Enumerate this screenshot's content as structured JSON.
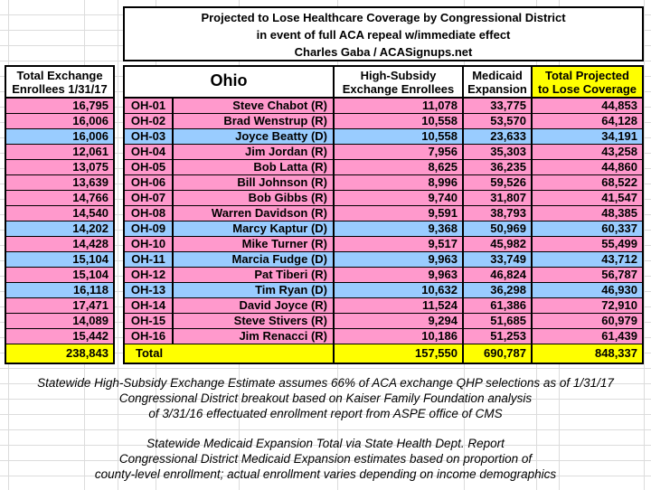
{
  "title": {
    "line1": "Projected to Lose Healthcare Coverage by Congressional District",
    "line2": "in event of full ACA repeal w/immediate effect",
    "line3": "Charles Gaba / ACASignups.net"
  },
  "left_column": {
    "header_line1": "Total Exchange",
    "header_line2": "Enrollees 1/31/17"
  },
  "table": {
    "state": "Ohio",
    "headers": {
      "high_subsidy_line1": "High-Subsidy",
      "high_subsidy_line2": "Exchange Enrollees",
      "medicaid_line1": "Medicaid",
      "medicaid_line2": "Expansion",
      "total_line1": "Total Projected",
      "total_line2": "to Lose Coverage"
    },
    "rows": [
      {
        "exchange_total": "16,795",
        "district": "OH-01",
        "representative": "Steve Chabot (R)",
        "party": "R",
        "high_subsidy": "11,078",
        "medicaid": "33,775",
        "total": "44,853"
      },
      {
        "exchange_total": "16,006",
        "district": "OH-02",
        "representative": "Brad Wenstrup (R)",
        "party": "R",
        "high_subsidy": "10,558",
        "medicaid": "53,570",
        "total": "64,128"
      },
      {
        "exchange_total": "16,006",
        "district": "OH-03",
        "representative": "Joyce Beatty (D)",
        "party": "D",
        "high_subsidy": "10,558",
        "medicaid": "23,633",
        "total": "34,191"
      },
      {
        "exchange_total": "12,061",
        "district": "OH-04",
        "representative": "Jim Jordan (R)",
        "party": "R",
        "high_subsidy": "7,956",
        "medicaid": "35,303",
        "total": "43,258"
      },
      {
        "exchange_total": "13,075",
        "district": "OH-05",
        "representative": "Bob Latta (R)",
        "party": "R",
        "high_subsidy": "8,625",
        "medicaid": "36,235",
        "total": "44,860"
      },
      {
        "exchange_total": "13,639",
        "district": "OH-06",
        "representative": "Bill Johnson (R)",
        "party": "R",
        "high_subsidy": "8,996",
        "medicaid": "59,526",
        "total": "68,522"
      },
      {
        "exchange_total": "14,766",
        "district": "OH-07",
        "representative": "Bob Gibbs (R)",
        "party": "R",
        "high_subsidy": "9,740",
        "medicaid": "31,807",
        "total": "41,547"
      },
      {
        "exchange_total": "14,540",
        "district": "OH-08",
        "representative": "Warren Davidson (R)",
        "party": "R",
        "high_subsidy": "9,591",
        "medicaid": "38,793",
        "total": "48,385"
      },
      {
        "exchange_total": "14,202",
        "district": "OH-09",
        "representative": "Marcy Kaptur (D)",
        "party": "D",
        "high_subsidy": "9,368",
        "medicaid": "50,969",
        "total": "60,337"
      },
      {
        "exchange_total": "14,428",
        "district": "OH-10",
        "representative": "Mike Turner (R)",
        "party": "R",
        "high_subsidy": "9,517",
        "medicaid": "45,982",
        "total": "55,499"
      },
      {
        "exchange_total": "15,104",
        "district": "OH-11",
        "representative": "Marcia Fudge (D)",
        "party": "D",
        "high_subsidy": "9,963",
        "medicaid": "33,749",
        "total": "43,712"
      },
      {
        "exchange_total": "15,104",
        "district": "OH-12",
        "representative": "Pat Tiberi (R)",
        "party": "R",
        "high_subsidy": "9,963",
        "medicaid": "46,824",
        "total": "56,787"
      },
      {
        "exchange_total": "16,118",
        "district": "OH-13",
        "representative": "Tim Ryan (D)",
        "party": "D",
        "high_subsidy": "10,632",
        "medicaid": "36,298",
        "total": "46,930"
      },
      {
        "exchange_total": "17,471",
        "district": "OH-14",
        "representative": "David Joyce (R)",
        "party": "R",
        "high_subsidy": "11,524",
        "medicaid": "61,386",
        "total": "72,910"
      },
      {
        "exchange_total": "14,089",
        "district": "OH-15",
        "representative": "Steve Stivers (R)",
        "party": "R",
        "high_subsidy": "9,294",
        "medicaid": "51,685",
        "total": "60,979"
      },
      {
        "exchange_total": "15,442",
        "district": "OH-16",
        "representative": "Jim Renacci (R)",
        "party": "R",
        "high_subsidy": "10,186",
        "medicaid": "51,253",
        "total": "61,439"
      }
    ],
    "total_row": {
      "label": "Total",
      "exchange_total": "238,843",
      "high_subsidy": "157,550",
      "medicaid": "690,787",
      "total": "848,337"
    }
  },
  "footnotes": {
    "block1": [
      "Statewide High-Subsidy Exchange Estimate assumes 66% of ACA exchange QHP selections as of 1/31/17",
      "Congressional District breakout based on Kaiser Family Foundation analysis",
      "of 3/31/16 effectuated enrollment report from ASPE office of CMS"
    ],
    "block2": [
      "Statewide Medicaid Expansion Total via State Health Dept. Report",
      "Congressional District Medicaid Expansion estimates based on proportion of",
      "county-level enrollment; actual enrollment varies depending on income demographics"
    ]
  },
  "colors": {
    "republican_row": "#FF99CC",
    "democrat_row": "#99CCFF",
    "highlight": "#FFFF00"
  }
}
